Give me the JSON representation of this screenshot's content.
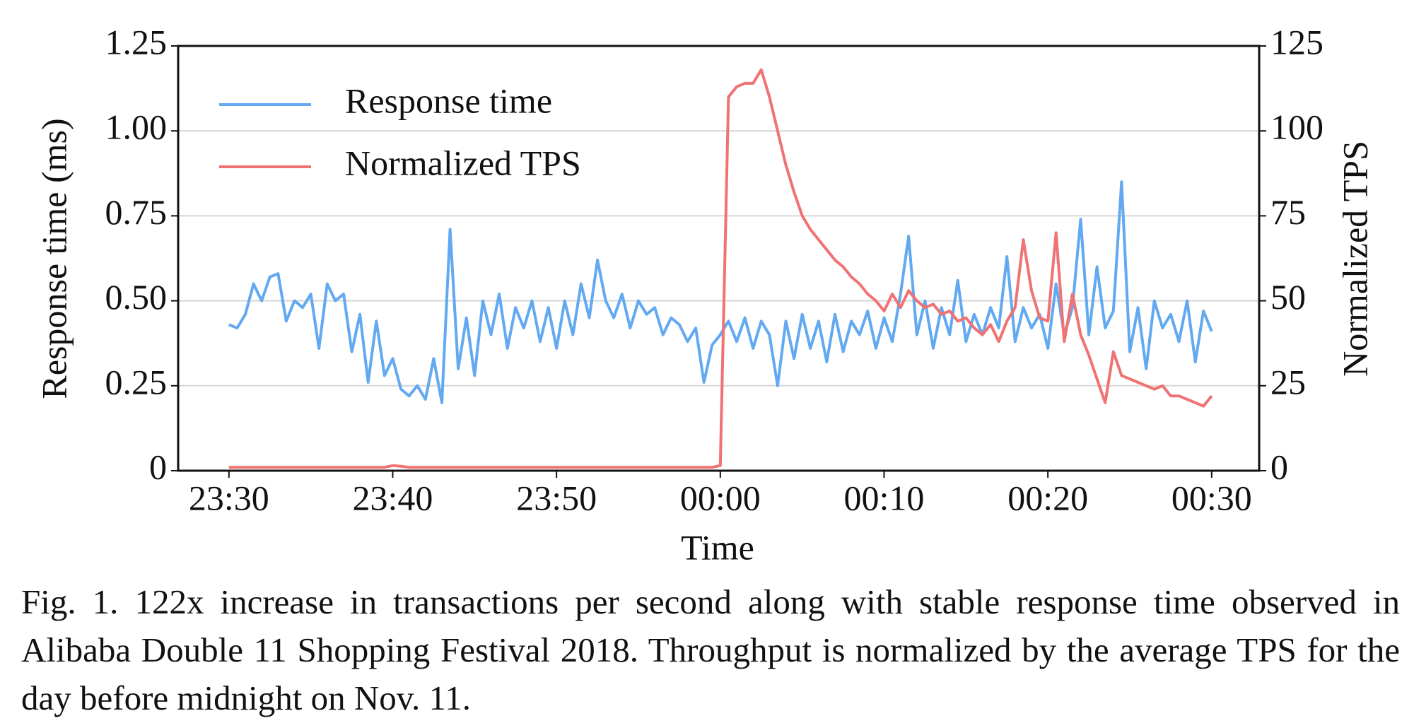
{
  "chart_data": {
    "type": "line",
    "xlabel": "Time",
    "ylabel": "Response time (ms)",
    "y2label": "Normalized TPS",
    "x": [
      0,
      0.5,
      1,
      1.5,
      2,
      2.5,
      3,
      3.5,
      4,
      4.5,
      5,
      5.5,
      6,
      6.5,
      7,
      7.5,
      8,
      8.5,
      9,
      9.5,
      10,
      10.5,
      11,
      11.5,
      12,
      12.5,
      13,
      13.5,
      14,
      14.5,
      15,
      15.5,
      16,
      16.5,
      17,
      17.5,
      18,
      18.5,
      19,
      19.5,
      20,
      20.5,
      21,
      21.5,
      22,
      22.5,
      23,
      23.5,
      24,
      24.5,
      25,
      25.5,
      26,
      26.5,
      27,
      27.5,
      28,
      28.5,
      29,
      29.5,
      30,
      30.5,
      31,
      31.5,
      32,
      32.5,
      33,
      33.5,
      34,
      34.5,
      35,
      35.5,
      36,
      36.5,
      37,
      37.5,
      38,
      38.5,
      39,
      39.5,
      40,
      40.5,
      41,
      41.5,
      42,
      42.5,
      43,
      43.5,
      44,
      44.5,
      45,
      45.5,
      46,
      46.5,
      47,
      47.5,
      48,
      48.5,
      49,
      49.5,
      50,
      50.5,
      51,
      51.5,
      52,
      52.5,
      53,
      53.5,
      54,
      54.5,
      55,
      55.5,
      56,
      56.5,
      57,
      57.5,
      58,
      58.5,
      59,
      59.5,
      60
    ],
    "series": [
      {
        "name": "Response time",
        "color": "#62a9f2",
        "axis": "y",
        "values": [
          0.43,
          0.42,
          0.46,
          0.55,
          0.5,
          0.57,
          0.58,
          0.44,
          0.5,
          0.48,
          0.52,
          0.36,
          0.55,
          0.5,
          0.52,
          0.35,
          0.46,
          0.26,
          0.44,
          0.28,
          0.33,
          0.24,
          0.22,
          0.25,
          0.21,
          0.33,
          0.2,
          0.71,
          0.3,
          0.45,
          0.28,
          0.5,
          0.4,
          0.52,
          0.36,
          0.48,
          0.42,
          0.5,
          0.38,
          0.48,
          0.36,
          0.5,
          0.4,
          0.55,
          0.45,
          0.62,
          0.5,
          0.45,
          0.52,
          0.42,
          0.5,
          0.46,
          0.48,
          0.4,
          0.45,
          0.43,
          0.38,
          0.42,
          0.26,
          0.37,
          0.4,
          0.44,
          0.38,
          0.45,
          0.36,
          0.44,
          0.4,
          0.25,
          0.44,
          0.33,
          0.46,
          0.36,
          0.44,
          0.32,
          0.46,
          0.35,
          0.44,
          0.4,
          0.47,
          0.36,
          0.45,
          0.38,
          0.52,
          0.69,
          0.4,
          0.5,
          0.36,
          0.48,
          0.4,
          0.56,
          0.38,
          0.46,
          0.4,
          0.48,
          0.42,
          0.63,
          0.38,
          0.48,
          0.42,
          0.46,
          0.36,
          0.55,
          0.4,
          0.48,
          0.74,
          0.4,
          0.6,
          0.42,
          0.47,
          0.85,
          0.35,
          0.48,
          0.3,
          0.5,
          0.42,
          0.46,
          0.38,
          0.5,
          0.32,
          0.47,
          0.41
        ]
      },
      {
        "name": "Normalized TPS",
        "color": "#f07272",
        "axis": "y2",
        "values": [
          1,
          1,
          1,
          1,
          1,
          1,
          1,
          1,
          1,
          1,
          1,
          1,
          1,
          1,
          1,
          1,
          1,
          1,
          1,
          1,
          1.5,
          1.3,
          1,
          1,
          1,
          1,
          1,
          1,
          1,
          1,
          1,
          1,
          1,
          1,
          1,
          1,
          1,
          1,
          1,
          1,
          1,
          1,
          1,
          1,
          1,
          1,
          1,
          1,
          1,
          1,
          1,
          1,
          1,
          1,
          1,
          1,
          1,
          1,
          1,
          1,
          1.5,
          110,
          113,
          114,
          114,
          118,
          110,
          100,
          90,
          82,
          75,
          71,
          68,
          65,
          62,
          60,
          57,
          55,
          52,
          50,
          47,
          52,
          48,
          53,
          50,
          48,
          49,
          46,
          47,
          44,
          45,
          42,
          40,
          43,
          38,
          44,
          48,
          68,
          53,
          45,
          44,
          70,
          38,
          52,
          40,
          34,
          27,
          20,
          35,
          28,
          27,
          26,
          25,
          24,
          25,
          22,
          22,
          21,
          20,
          19,
          22
        ]
      }
    ],
    "xlim": [
      -3.1,
      62.9
    ],
    "xticks": [
      {
        "value": 0,
        "label": "23:30"
      },
      {
        "value": 10,
        "label": "23:40"
      },
      {
        "value": 20,
        "label": "23:50"
      },
      {
        "value": 30,
        "label": "00:00"
      },
      {
        "value": 40,
        "label": "00:10"
      },
      {
        "value": 50,
        "label": "00:20"
      },
      {
        "value": 60,
        "label": "00:30"
      }
    ],
    "ylim": [
      0,
      1.25
    ],
    "yticks": [
      0,
      0.25,
      {
        "value": 0.5,
        "label": "0.50"
      },
      0.75,
      {
        "value": 1,
        "label": "1.00"
      },
      1.25
    ],
    "y2lim": [
      0,
      125
    ],
    "y2ticks": [
      0,
      25,
      50,
      75,
      100,
      125
    ],
    "grid": true,
    "legend": "upper left"
  },
  "caption": "Fig. 1.  122x increase in transactions per second along with stable response time observed in Alibaba Double 11 Shopping Festival 2018. Throughput is normalized by the average TPS for the day before midnight on Nov. 11."
}
